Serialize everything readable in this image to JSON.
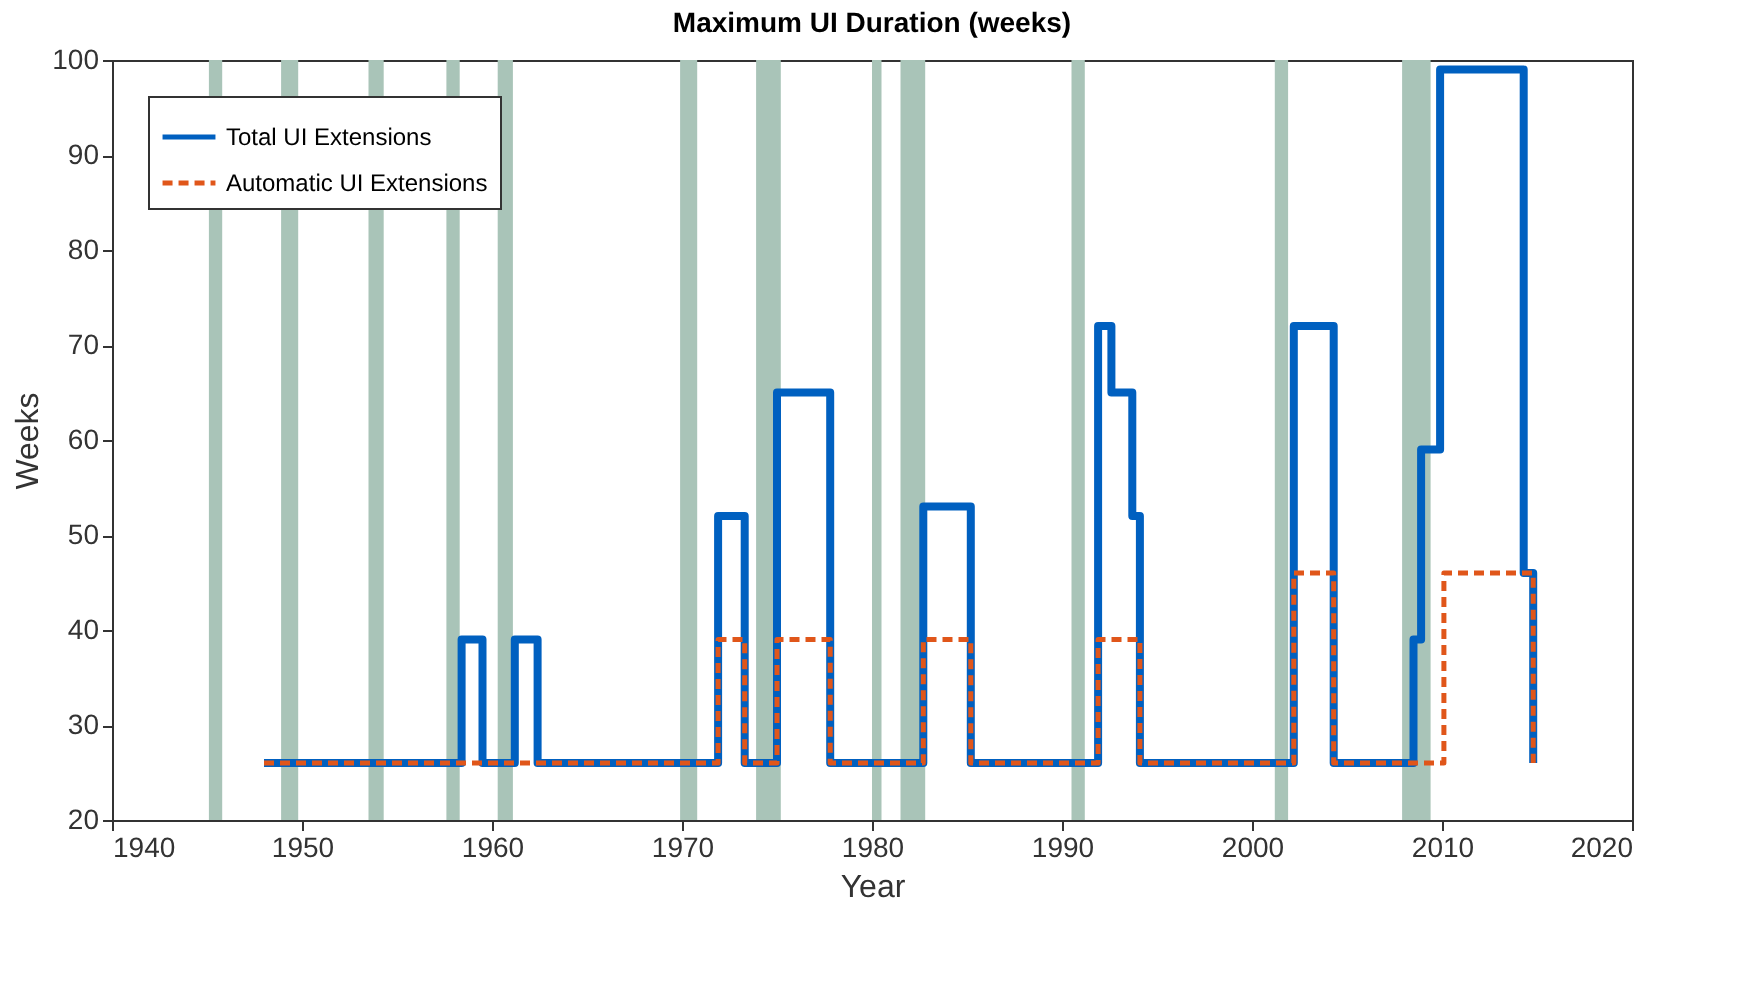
{
  "chart_data": {
    "type": "step",
    "title": "Maximum UI Duration (weeks)",
    "xlabel": "Year",
    "ylabel": "Weeks",
    "xlim": [
      1940,
      2020
    ],
    "xticks": [
      1940,
      1950,
      1960,
      1970,
      1980,
      1990,
      2000,
      2010,
      2020
    ],
    "ylim": [
      20,
      100
    ],
    "yticks": [
      20,
      30,
      40,
      50,
      60,
      70,
      80,
      90,
      100
    ],
    "grid": false,
    "legend": "top left",
    "series": [
      {
        "name": "Total UI Extensions",
        "color": "#0060c0",
        "line_style": "solid",
        "x": [
          1948.0,
          1958.4,
          1959.5,
          1961.2,
          1962.4,
          1971.9,
          1973.3,
          1975.0,
          1977.8,
          1982.7,
          1985.2,
          1991.9,
          1992.6,
          1993.7,
          1994.1,
          2002.2,
          2004.3,
          2008.5,
          2008.9,
          2009.9,
          2014.3,
          2014.8
        ],
        "values": [
          26,
          39,
          26,
          39,
          26,
          52,
          26,
          65,
          26,
          53,
          26,
          72,
          65,
          52,
          26,
          72,
          26,
          39,
          59,
          99,
          46,
          26
        ]
      },
      {
        "name": "Automatic UI Extensions",
        "color": "#e0561a",
        "line_style": "dashed",
        "x": [
          1948.0,
          1971.9,
          1973.3,
          1975.0,
          1977.8,
          1982.7,
          1985.2,
          1991.9,
          1994.1,
          2002.2,
          2004.3,
          2010.1,
          2014.8
        ],
        "values": [
          26,
          39,
          26,
          39,
          26,
          39,
          26,
          39,
          26,
          46,
          26,
          46,
          26
        ]
      }
    ],
    "bands": [
      {
        "axis": "x",
        "from": 1945.1,
        "to": 1945.8,
        "color": "#a9c4b8"
      },
      {
        "axis": "x",
        "from": 1948.9,
        "to": 1949.8,
        "color": "#a9c4b8"
      },
      {
        "axis": "x",
        "from": 1953.5,
        "to": 1954.3,
        "color": "#a9c4b8"
      },
      {
        "axis": "x",
        "from": 1957.6,
        "to": 1958.3,
        "color": "#a9c4b8"
      },
      {
        "axis": "x",
        "from": 1960.3,
        "to": 1961.1,
        "color": "#a9c4b8"
      },
      {
        "axis": "x",
        "from": 1969.9,
        "to": 1970.8,
        "color": "#a9c4b8"
      },
      {
        "axis": "x",
        "from": 1973.9,
        "to": 1975.2,
        "color": "#a9c4b8"
      },
      {
        "axis": "x",
        "from": 1980.0,
        "to": 1980.5,
        "color": "#a9c4b8"
      },
      {
        "axis": "x",
        "from": 1981.5,
        "to": 1982.8,
        "color": "#a9c4b8"
      },
      {
        "axis": "x",
        "from": 1990.5,
        "to": 1991.2,
        "color": "#a9c4b8"
      },
      {
        "axis": "x",
        "from": 2001.2,
        "to": 2001.9,
        "color": "#a9c4b8"
      },
      {
        "axis": "x",
        "from": 2007.9,
        "to": 2009.4,
        "color": "#a9c4b8"
      }
    ]
  }
}
